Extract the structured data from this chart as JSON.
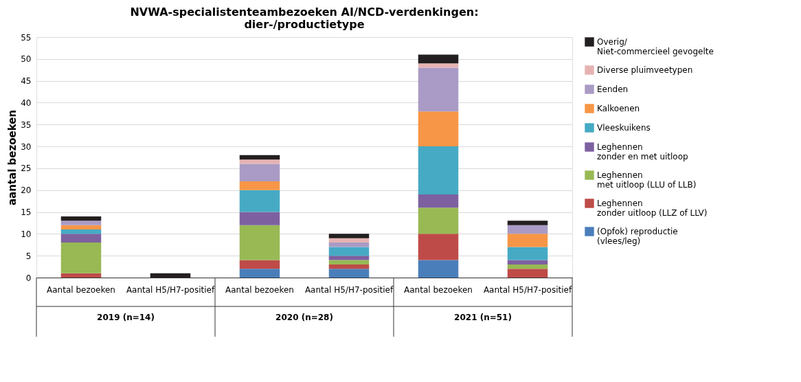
{
  "chart_data": {
    "type": "bar",
    "stacked": true,
    "title": "NVWA-specialistenteambezoeken AI/NCD-verdenkingen:\ndier-/productietype",
    "ylabel": "aantal bezoeken",
    "categories": [
      "Aantal bezoeken",
      "Aantal H5/H7-positief",
      "Aantal bezoeken",
      "Aantal H5/H7-positief",
      "Aantal bezoeken",
      "Aantal H5/H7-positief"
    ],
    "annotations": [
      "2019 (n=14)",
      "2020 (n=28)",
      "2021 (n=51)"
    ],
    "ylim": [
      0,
      55
    ],
    "yticks": [
      0,
      5,
      10,
      15,
      20,
      25,
      30,
      35,
      40,
      45,
      50,
      55
    ],
    "grid": "y",
    "legend": "right",
    "series": [
      {
        "name": "(Opfok) reproductie\n(vlees/leg)",
        "color": "#4a7ebb",
        "values": [
          0,
          0,
          2,
          2,
          4,
          0
        ]
      },
      {
        "name": "Leghennen\nzonder uitloop (LLZ of LLV)",
        "color": "#be4b48",
        "values": [
          1,
          0,
          2,
          1,
          6,
          2
        ]
      },
      {
        "name": "Leghennen\nmet uitloop (LLU of LLB)",
        "color": "#98b954",
        "values": [
          7,
          0,
          8,
          1,
          6,
          1
        ]
      },
      {
        "name": "Leghennen\nzonder en met uitloop",
        "color": "#7d60a0",
        "values": [
          2,
          0,
          3,
          1,
          3,
          1
        ]
      },
      {
        "name": "Vleeskuikens",
        "color": "#46aac5",
        "values": [
          1,
          0,
          5,
          2,
          11,
          3
        ]
      },
      {
        "name": "Kalkoenen",
        "color": "#f79646",
        "values": [
          1,
          0,
          2,
          0,
          8,
          3
        ]
      },
      {
        "name": "Eenden",
        "color": "#a99bc5",
        "values": [
          1,
          0,
          4,
          1,
          10,
          2
        ]
      },
      {
        "name": "Diverse pluimveetypen",
        "color": "#e6b3b2",
        "values": [
          0,
          0,
          1,
          1,
          1,
          0
        ]
      },
      {
        "name": "Overig/\nNiet-commercieel gevogelte",
        "color": "#231f20",
        "values": [
          1,
          1,
          1,
          1,
          2,
          1
        ]
      }
    ]
  }
}
